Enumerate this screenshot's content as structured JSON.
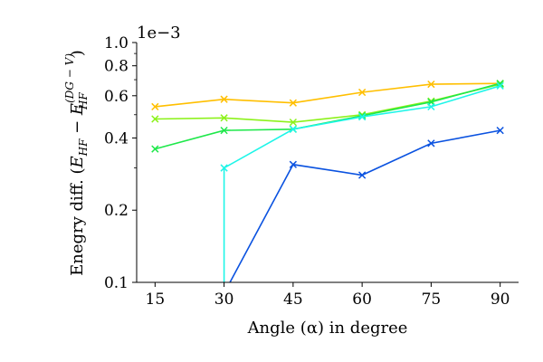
{
  "chart_data": {
    "type": "line",
    "xlabel": "Angle (α) in degree",
    "ylabel_main": "Enegry diff. (",
    "ylabel_parts": {
      "e1": "E",
      "e1_sub": "HF",
      "minus": " − ",
      "e2": "E",
      "e2_sub": "HF",
      "e2_sup": "(DG − V)",
      "close": ")"
    },
    "y_offset_label": "1e−3",
    "y_scale": "log",
    "ylim": [
      0.1,
      1.0
    ],
    "xlim": [
      11,
      94
    ],
    "x": [
      15,
      30,
      45,
      60,
      75,
      90
    ],
    "x_ticks": [
      "15",
      "30",
      "45",
      "60",
      "75",
      "90"
    ],
    "y_ticks": [
      {
        "value": 0.1,
        "label": "0.1"
      },
      {
        "value": 0.2,
        "label": "0.2"
      },
      {
        "value": 0.4,
        "label": "0.4"
      },
      {
        "value": 0.6,
        "label": "0.6"
      },
      {
        "value": 0.8,
        "label": "0.8"
      },
      {
        "value": 1.0,
        "label": "1.0"
      }
    ],
    "grid": false,
    "series": [
      {
        "color": "#ffbf00",
        "x": [
          15,
          30,
          45,
          60,
          75,
          90
        ],
        "values": [
          0.54,
          0.58,
          0.56,
          0.62,
          0.67,
          0.675
        ]
      },
      {
        "color": "#8cf21a",
        "x": [
          15,
          30,
          45,
          60,
          75,
          90
        ],
        "values": [
          0.48,
          0.485,
          0.465,
          0.5,
          0.57,
          0.67
        ]
      },
      {
        "color": "#1ee84a",
        "x": [
          15,
          30,
          45,
          60,
          75,
          90
        ],
        "values": [
          0.36,
          0.43,
          0.435,
          0.495,
          0.565,
          0.675
        ]
      },
      {
        "color": "#1ef5e8",
        "x": [
          30,
          30,
          45,
          60,
          75,
          90
        ],
        "values": [
          0.09,
          0.3,
          0.435,
          0.49,
          0.54,
          0.66
        ],
        "markers": [
          false,
          true,
          true,
          true,
          true,
          true
        ]
      },
      {
        "color": "#0a52e0",
        "x": [
          30,
          45,
          60,
          75,
          90
        ],
        "values": [
          0.09,
          0.31,
          0.28,
          0.38,
          0.43
        ],
        "markers": [
          false,
          true,
          true,
          true,
          true
        ]
      }
    ]
  }
}
